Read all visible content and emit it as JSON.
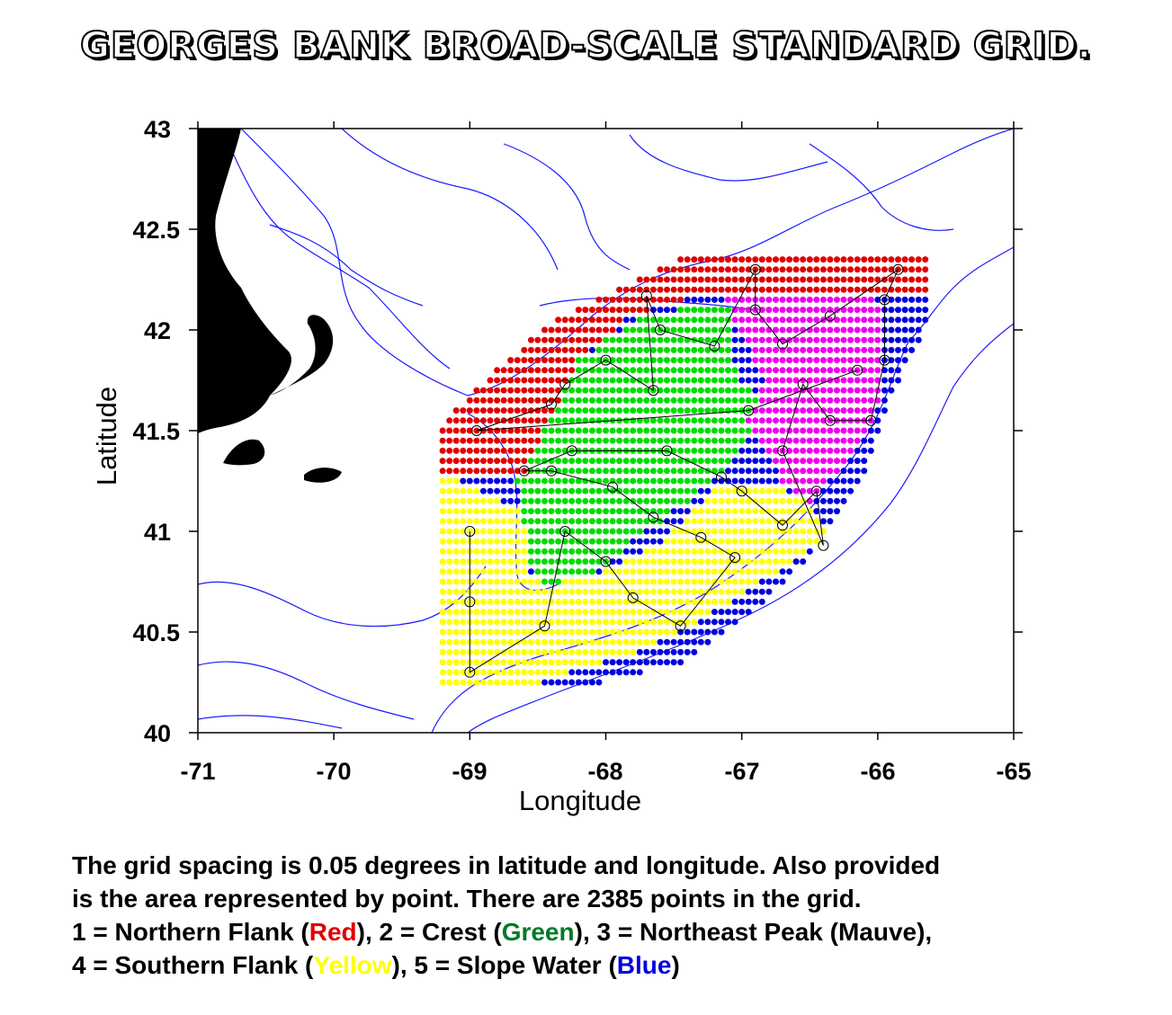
{
  "title": "GEORGES BANK BROAD-SCALE STANDARD GRID.",
  "axes": {
    "xlabel": "Longitude",
    "ylabel": "Latitude",
    "xlim": [
      -71,
      -65
    ],
    "ylim": [
      40,
      43
    ],
    "x_ticks": [
      "-71",
      "-70",
      "-69",
      "-68",
      "-67",
      "-66",
      "-65"
    ],
    "y_ticks": [
      "43",
      "42.5",
      "42",
      "41.5",
      "41",
      "40.5",
      "40"
    ]
  },
  "regions": [
    {
      "id": 1,
      "name": "Northern Flank",
      "color_name": "Red",
      "color": "#e00000"
    },
    {
      "id": 2,
      "name": "Crest",
      "color_name": "Green",
      "color": "#00dd00"
    },
    {
      "id": 3,
      "name": "Northeast Peak",
      "color_name": "Mauve",
      "color": "#ee00ee"
    },
    {
      "id": 4,
      "name": "Southern Flank",
      "color_name": "Yellow",
      "color": "#ffff00"
    },
    {
      "id": 5,
      "name": "Slope Water",
      "color_name": "Blue",
      "color": "#0000e0"
    }
  ],
  "grid_spacing_deg": 0.05,
  "grid_points_total": 2385,
  "stations": [
    [
      -69.0,
      41.0
    ],
    [
      -69.0,
      40.65
    ],
    [
      -69.0,
      40.3
    ],
    [
      -68.45,
      40.53
    ],
    [
      -68.3,
      41.0
    ],
    [
      -68.0,
      40.85
    ],
    [
      -67.8,
      40.67
    ],
    [
      -67.45,
      40.53
    ],
    [
      -67.05,
      40.87
    ],
    [
      -67.3,
      40.97
    ],
    [
      -67.65,
      41.07
    ],
    [
      -67.95,
      41.22
    ],
    [
      -68.4,
      41.3
    ],
    [
      -68.6,
      41.3
    ],
    [
      -68.25,
      41.4
    ],
    [
      -67.55,
      41.4
    ],
    [
      -67.15,
      41.27
    ],
    [
      -67.0,
      41.2
    ],
    [
      -66.7,
      41.03
    ],
    [
      -66.45,
      41.2
    ],
    [
      -66.4,
      40.93
    ],
    [
      -66.7,
      41.4
    ],
    [
      -66.55,
      41.73
    ],
    [
      -66.35,
      41.55
    ],
    [
      -66.05,
      41.55
    ],
    [
      -65.95,
      41.85
    ],
    [
      -65.95,
      42.15
    ],
    [
      -65.85,
      42.3
    ],
    [
      -66.35,
      42.07
    ],
    [
      -66.7,
      41.93
    ],
    [
      -66.9,
      42.1
    ],
    [
      -66.9,
      42.3
    ],
    [
      -67.2,
      41.92
    ],
    [
      -67.6,
      42.0
    ],
    [
      -67.7,
      42.17
    ],
    [
      -67.65,
      41.7
    ],
    [
      -68.0,
      41.85
    ],
    [
      -68.3,
      41.73
    ],
    [
      -68.4,
      41.63
    ],
    [
      -68.95,
      41.5
    ],
    [
      -66.95,
      41.6
    ],
    [
      -66.15,
      41.8
    ]
  ],
  "caption": {
    "line1": "The grid spacing is 0.05 degrees in latitude and longitude. Also provided",
    "line2": "is the area represented by point.  There are 2385 points in the grid.",
    "line3": {
      "pre": " 1 = Northern Flank (",
      "red": "Red",
      "mid1": "), 2 = Crest (",
      "green": "Green",
      "mid2": "), 3 = Northeast Peak (Mauve),"
    },
    "line4": {
      "pre": " 4 = Southern Flank (",
      "yellow": "Yellow",
      "mid1": "), 5 = Slope Water (",
      "blue": "Blue",
      "end": ")"
    }
  }
}
